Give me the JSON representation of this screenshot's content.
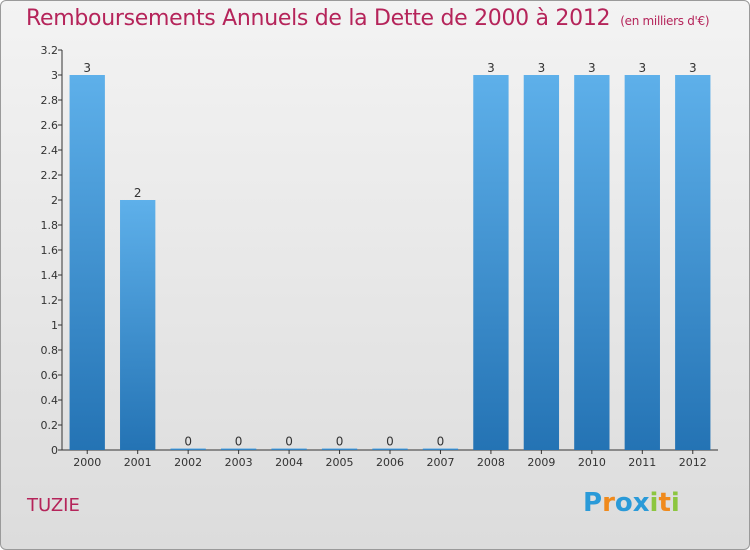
{
  "chart_data": {
    "type": "bar",
    "title": "Remboursements Annuels de la Dette de 2000 à 2012",
    "subtitle": "(en milliers d'€)",
    "categories": [
      "2000",
      "2001",
      "2002",
      "2003",
      "2004",
      "2005",
      "2006",
      "2007",
      "2008",
      "2009",
      "2010",
      "2011",
      "2012"
    ],
    "values": [
      3,
      2,
      0,
      0,
      0,
      0,
      0,
      0,
      3,
      3,
      3,
      3,
      3
    ],
    "data_labels": [
      "3",
      "2",
      "0",
      "0",
      "0",
      "0",
      "0",
      "0",
      "3",
      "3",
      "3",
      "3",
      "3"
    ],
    "ylim": [
      0,
      3.2
    ],
    "yticks": [
      "0",
      "0.2",
      "0.4",
      "0.6",
      "0.8",
      "1",
      "1.2",
      "1.4",
      "1.6",
      "1.8",
      "2",
      "2.2",
      "2.4",
      "2.6",
      "2.8",
      "3",
      "3.2"
    ],
    "grid": false,
    "bar_color": "#3f8fd1"
  },
  "footer": {
    "commune": "TUZIE",
    "brand_letters": [
      {
        "ch": "P",
        "color": "#2a9ad8"
      },
      {
        "ch": "r",
        "color": "#f08a1c"
      },
      {
        "ch": "o",
        "color": "#2a9ad8"
      },
      {
        "ch": "x",
        "color": "#2a9ad8"
      },
      {
        "ch": "i",
        "color": "#8cc63f"
      },
      {
        "ch": "t",
        "color": "#f08a1c"
      },
      {
        "ch": "i",
        "color": "#8cc63f"
      }
    ]
  }
}
